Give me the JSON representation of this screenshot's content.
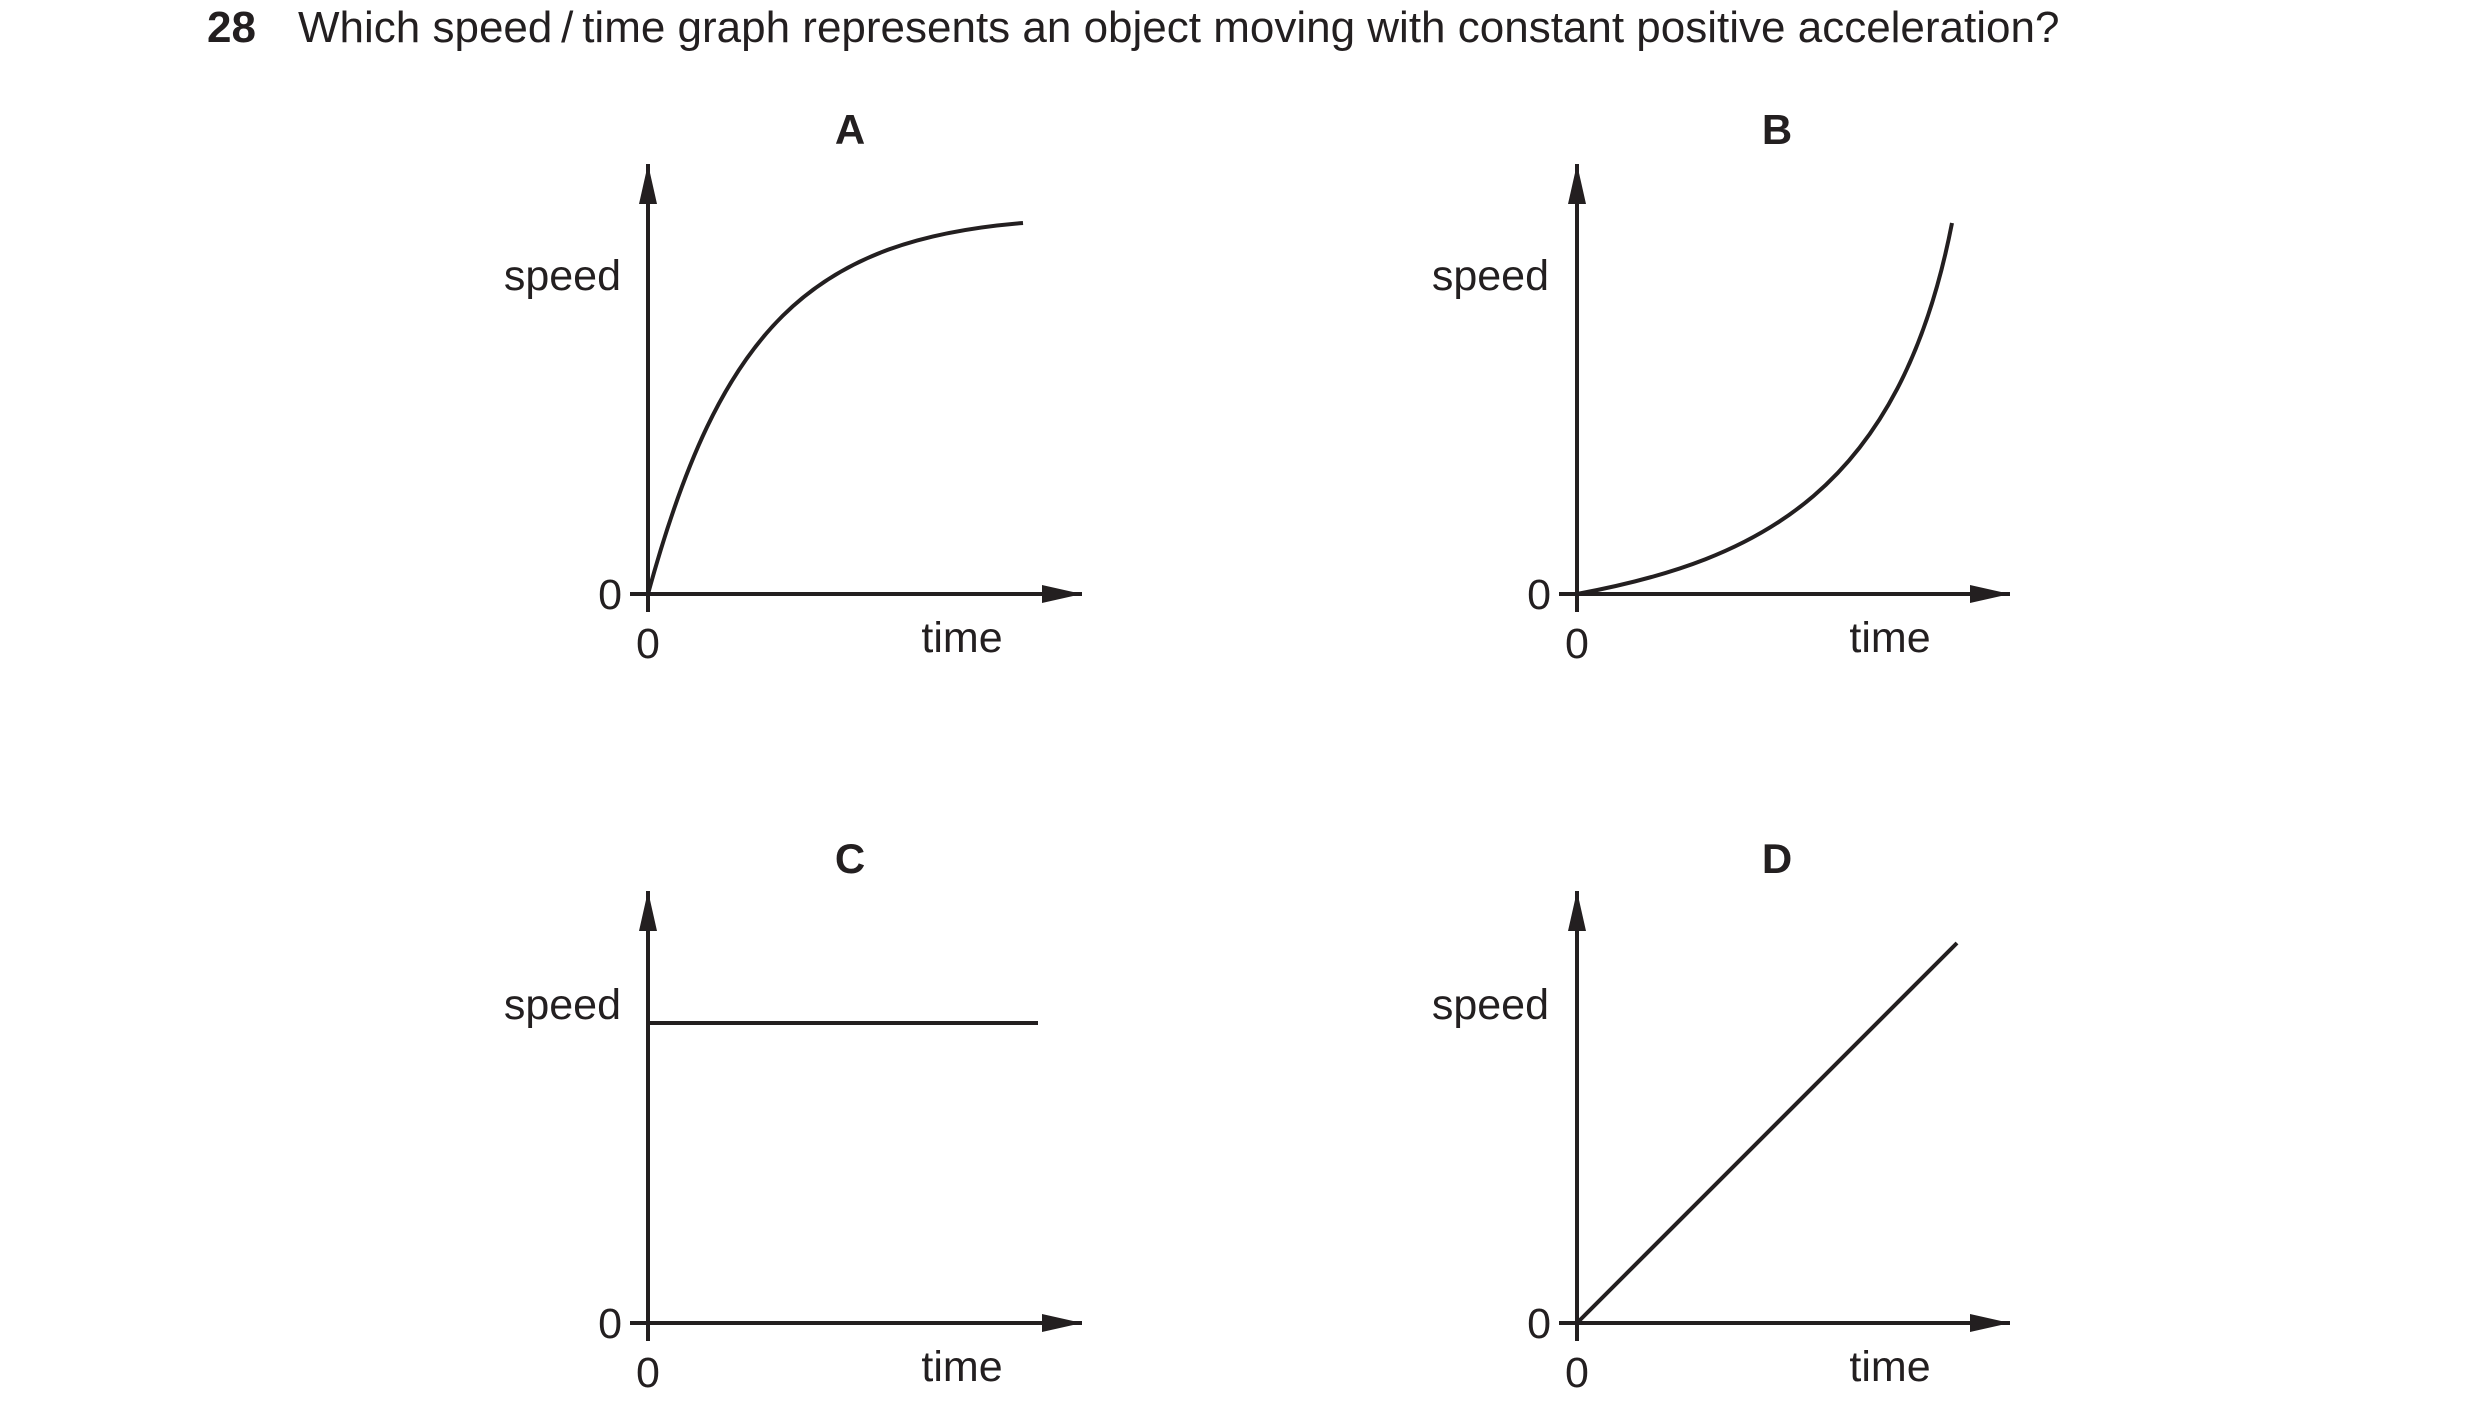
{
  "question": {
    "number": "28",
    "text": "Which speed / time graph represents an object moving with constant positive acceleration?"
  },
  "graphs": [
    {
      "option": "A",
      "ylabel": "speed",
      "xlabel": "time",
      "y_origin_tick": "0",
      "x_origin_tick": "0",
      "curve": "decelerating-rise"
    },
    {
      "option": "B",
      "ylabel": "speed",
      "xlabel": "time",
      "y_origin_tick": "0",
      "x_origin_tick": "0",
      "curve": "accelerating-rise"
    },
    {
      "option": "C",
      "ylabel": "speed",
      "xlabel": "time",
      "y_origin_tick": "0",
      "x_origin_tick": "0",
      "curve": "horizontal-line"
    },
    {
      "option": "D",
      "ylabel": "speed",
      "xlabel": "time",
      "y_origin_tick": "0",
      "x_origin_tick": "0",
      "curve": "straight-line-through-origin"
    }
  ],
  "colors": {
    "ink": "#231f20",
    "background": "#ffffff"
  }
}
